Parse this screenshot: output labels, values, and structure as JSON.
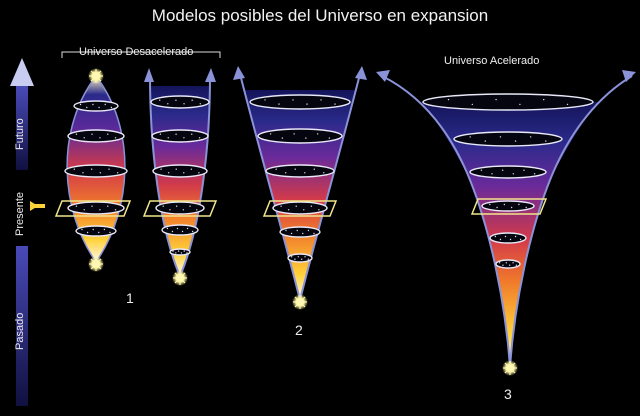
{
  "title": "Modelos posibles del Universo en expansion",
  "groups": {
    "decelerated": "Universo Desacelerado",
    "accelerated": "Universo Acelerado"
  },
  "timeline": {
    "future": "Futuro",
    "present": "Presente",
    "past": "Pasado"
  },
  "models": [
    {
      "number": "1"
    },
    {
      "number": "2"
    },
    {
      "number": "3"
    }
  ],
  "colors": {
    "background": "#000000",
    "shell_top": "#1a1a7a",
    "shell_mid": "#e8403a",
    "shell_hot": "#ffd23a",
    "present_box": "#f0e68c",
    "arrow": "#8a92d8"
  }
}
